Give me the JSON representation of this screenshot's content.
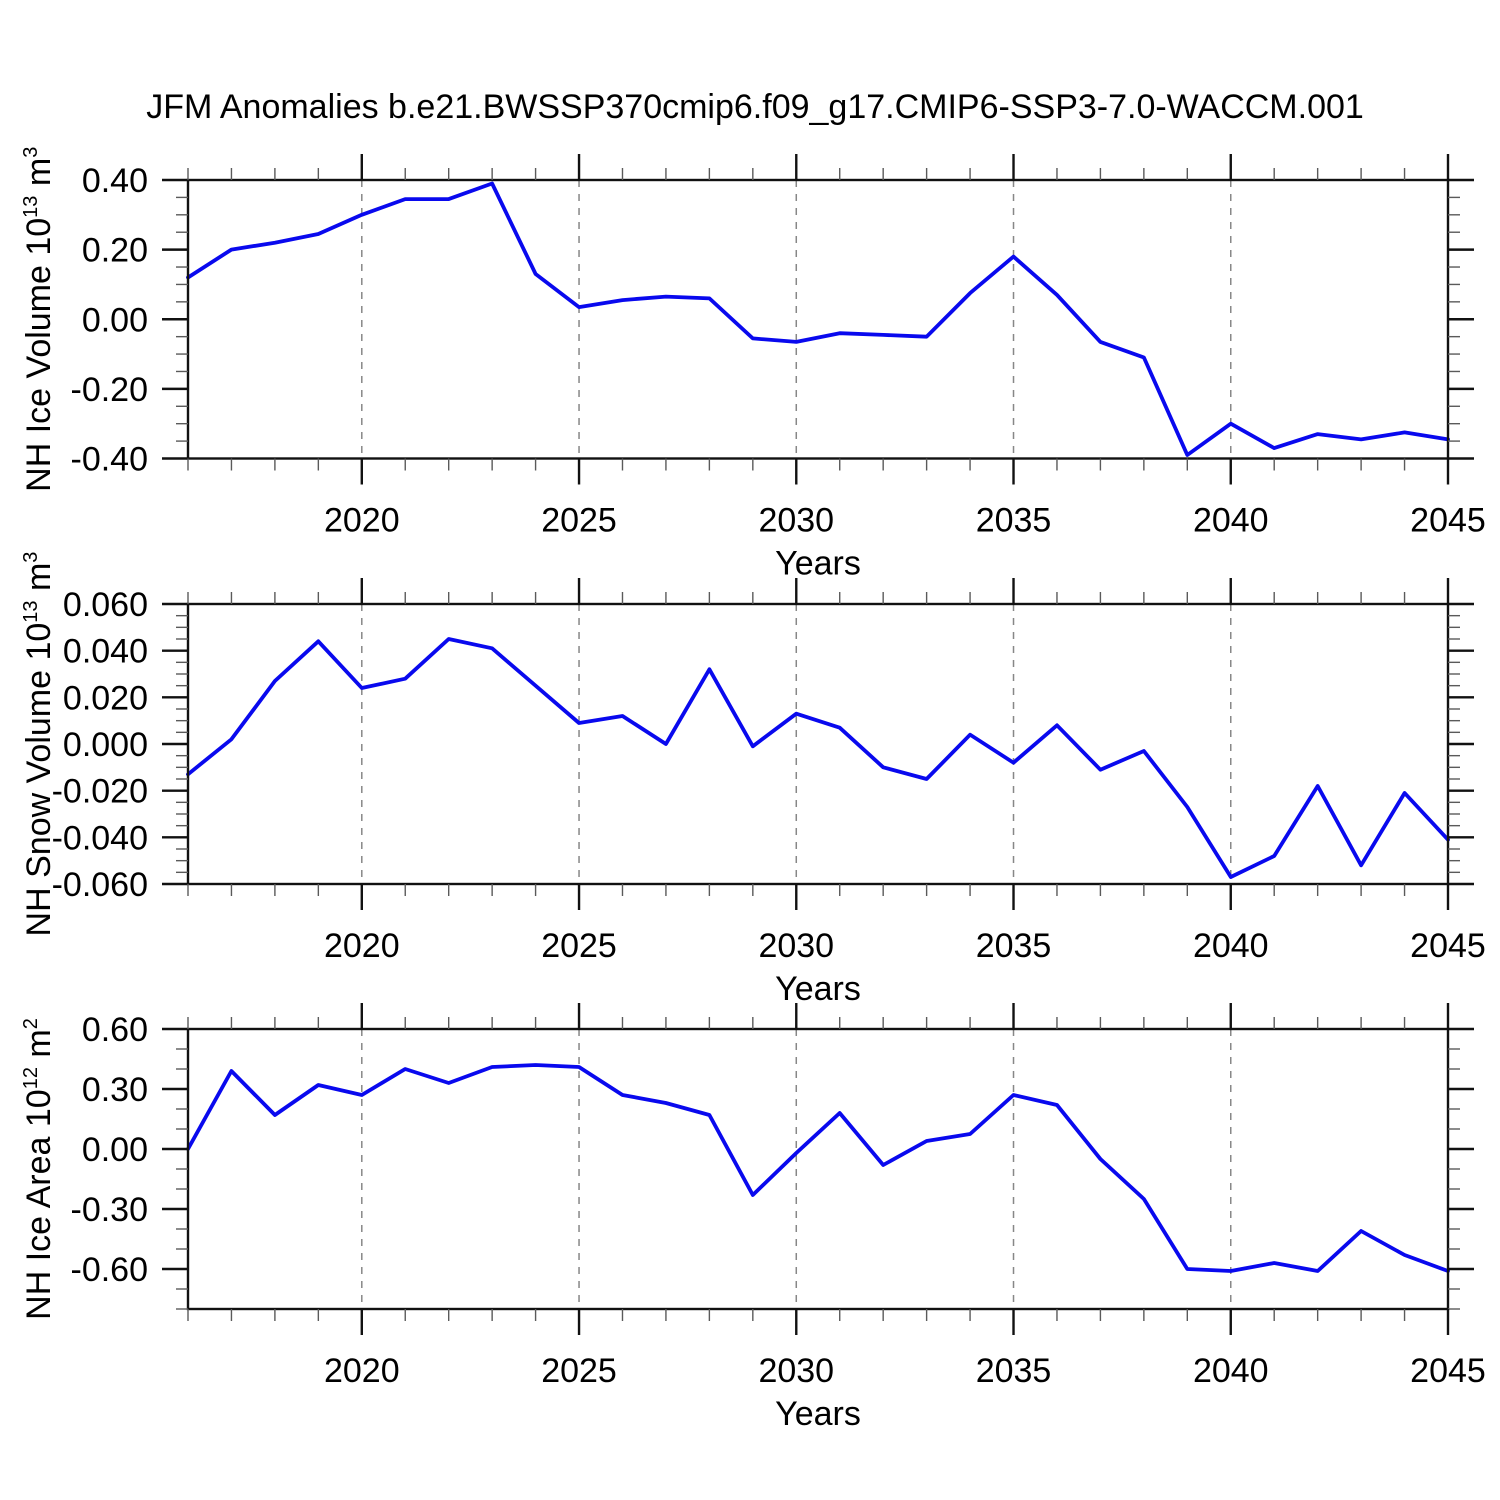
{
  "title": "JFM Anomalies b.e21.BWSSP370cmip6.f09_g17.CMIP6-SSP3-7.0-WACCM.001",
  "accent_color": "#0909ee",
  "chart_data": [
    {
      "type": "line",
      "key": "nh-ice-volume",
      "ylabel": {
        "prefix": "NH Ice Volume 10",
        "sup1": "13",
        "mid": " m",
        "sup2": "3"
      },
      "xlabel": "Years",
      "x": [
        2016,
        2017,
        2018,
        2019,
        2020,
        2021,
        2022,
        2023,
        2024,
        2025,
        2026,
        2027,
        2028,
        2029,
        2030,
        2031,
        2032,
        2033,
        2034,
        2035,
        2036,
        2037,
        2038,
        2039,
        2040,
        2041,
        2042,
        2043,
        2044,
        2045
      ],
      "values": [
        0.12,
        0.2,
        0.22,
        0.245,
        0.3,
        0.345,
        0.345,
        0.39,
        0.13,
        0.035,
        0.055,
        0.065,
        0.06,
        -0.055,
        -0.065,
        -0.04,
        -0.045,
        -0.05,
        0.075,
        0.18,
        0.07,
        -0.065,
        -0.11,
        -0.39,
        -0.3,
        -0.37,
        -0.33,
        -0.345,
        -0.325,
        -0.345
      ],
      "xlim": [
        2016,
        2045
      ],
      "ylim": [
        -0.4,
        0.4
      ],
      "ytick_step": 0.2,
      "yminor_step": 0.05,
      "ydecimals": 2,
      "ytick_labels": [
        "0.40",
        "0.20",
        "0.00",
        "-0.20",
        "-0.40"
      ],
      "xticks": [
        2020,
        2025,
        2030,
        2035,
        2040,
        2045
      ],
      "gridlines": [
        2020,
        2025,
        2030,
        2035,
        2040
      ],
      "grid_on": true,
      "legend": "none",
      "line_color": "#0909ee"
    },
    {
      "type": "line",
      "key": "nh-snow-volume",
      "ylabel": {
        "prefix": "NH Snow Volume 10",
        "sup1": "13",
        "mid": " m",
        "sup2": "3"
      },
      "xlabel": "Years",
      "x": [
        2016,
        2017,
        2018,
        2019,
        2020,
        2021,
        2022,
        2023,
        2024,
        2025,
        2026,
        2027,
        2028,
        2029,
        2030,
        2031,
        2032,
        2033,
        2034,
        2035,
        2036,
        2037,
        2038,
        2039,
        2040,
        2041,
        2042,
        2043,
        2044,
        2045
      ],
      "values": [
        -0.013,
        0.002,
        0.027,
        0.044,
        0.024,
        0.028,
        0.045,
        0.041,
        0.025,
        0.009,
        0.012,
        0.0,
        0.032,
        -0.001,
        0.013,
        0.007,
        -0.01,
        -0.015,
        0.004,
        -0.008,
        0.008,
        -0.011,
        -0.003,
        -0.027,
        -0.057,
        -0.048,
        -0.018,
        -0.052,
        -0.021,
        -0.041
      ],
      "xlim": [
        2016,
        2045
      ],
      "ylim": [
        -0.06,
        0.06
      ],
      "ytick_step": 0.02,
      "yminor_step": 0.005,
      "ydecimals": 3,
      "ytick_labels": [
        "0.060",
        "0.040",
        "0.020",
        "0.000",
        "-0.020",
        "-0.040",
        "-0.060"
      ],
      "xticks": [
        2020,
        2025,
        2030,
        2035,
        2040,
        2045
      ],
      "gridlines": [
        2020,
        2025,
        2030,
        2035,
        2040
      ],
      "grid_on": true,
      "legend": "none",
      "line_color": "#0909ee"
    },
    {
      "type": "line",
      "key": "nh-ice-area",
      "ylabel": {
        "prefix": "NH Ice Area 10",
        "sup1": "12",
        "mid": " m",
        "sup2": "2"
      },
      "xlabel": "Years",
      "x": [
        2016,
        2017,
        2018,
        2019,
        2020,
        2021,
        2022,
        2023,
        2024,
        2025,
        2026,
        2027,
        2028,
        2029,
        2030,
        2031,
        2032,
        2033,
        2034,
        2035,
        2036,
        2037,
        2038,
        2039,
        2040,
        2041,
        2042,
        2043,
        2044,
        2045
      ],
      "values": [
        0.0,
        0.39,
        0.17,
        0.32,
        0.27,
        0.4,
        0.33,
        0.41,
        0.42,
        0.41,
        0.27,
        0.23,
        0.17,
        -0.23,
        -0.02,
        0.18,
        -0.08,
        0.04,
        0.075,
        0.27,
        0.22,
        -0.05,
        -0.25,
        -0.6,
        -0.61,
        -0.57,
        -0.61,
        -0.41,
        -0.53,
        -0.61
      ],
      "xlim": [
        2016,
        2045
      ],
      "ylim": [
        -0.8,
        0.6
      ],
      "ytick_step": 0.3,
      "yminor_step": 0.1,
      "ydecimals": 2,
      "ytick_labels": [
        "0.60",
        "0.30",
        "0.00",
        "-0.30",
        "-0.60"
      ],
      "xticks": [
        2020,
        2025,
        2030,
        2035,
        2040,
        2045
      ],
      "gridlines": [
        2020,
        2025,
        2030,
        2035,
        2040
      ],
      "grid_on": true,
      "legend": "none",
      "line_color": "#0909ee"
    }
  ]
}
